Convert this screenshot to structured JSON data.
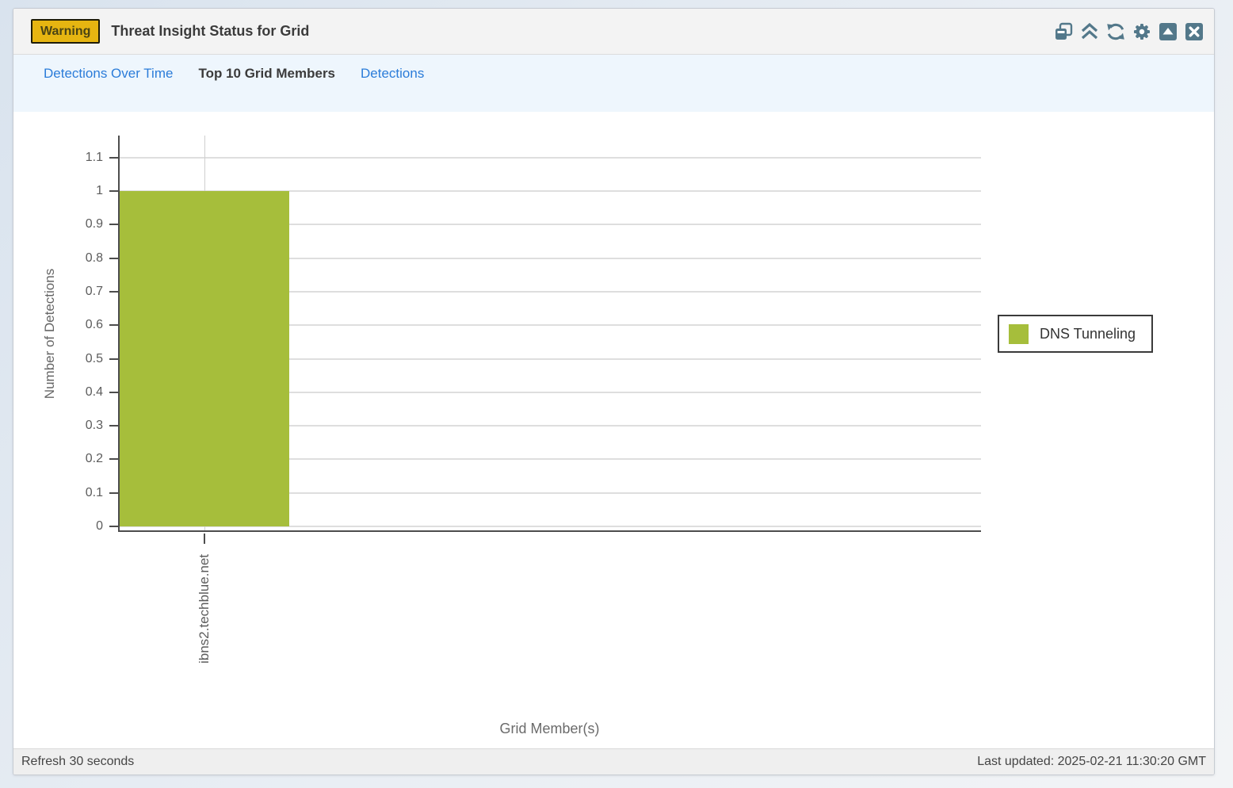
{
  "panel": {
    "badge": "Warning",
    "title": "Threat Insight Status for Grid",
    "toolbar_icons": [
      "popout",
      "collapse-all",
      "refresh",
      "settings",
      "minimize",
      "close"
    ]
  },
  "tabs": [
    {
      "label": "Detections Over Time",
      "active": false
    },
    {
      "label": "Top 10 Grid Members",
      "active": true
    },
    {
      "label": "Detections",
      "active": false
    }
  ],
  "chart_data": {
    "type": "bar",
    "title": "",
    "categories": [
      "ibns2.techblue.net"
    ],
    "series": [
      {
        "name": "DNS Tunneling",
        "values": [
          1
        ]
      }
    ],
    "xlabel": "Grid Member(s)",
    "ylabel": "Number of Detections",
    "ylim": [
      0,
      1.15
    ],
    "yticks": [
      0,
      0.1,
      0.2,
      0.3,
      0.4,
      0.5,
      0.6,
      0.7,
      0.8,
      0.9,
      1,
      1.1
    ],
    "grid": true,
    "legend_position": "right",
    "bar_color": "#a6be3b"
  },
  "footer": {
    "refresh": "Refresh 30 seconds",
    "last_updated": "Last updated: 2025-02-21 11:30:20 GMT"
  },
  "colors": {
    "bar": "#a6be3b",
    "link": "#2b7cd9",
    "icon": "#53788a",
    "badge_bg": "#e6b511",
    "axis": "#4d4d4d"
  }
}
